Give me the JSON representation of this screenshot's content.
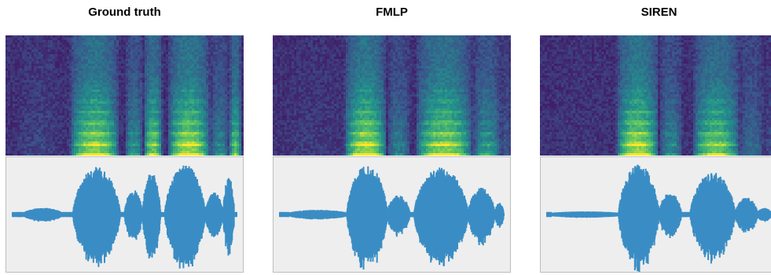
{
  "panels": [
    {
      "title": "Ground truth",
      "seed": 3,
      "segments": [
        [
          0.05,
          0.22,
          0.1
        ],
        [
          0.27,
          0.48,
          0.9
        ],
        [
          0.5,
          0.58,
          0.45
        ],
        [
          0.58,
          0.66,
          0.8
        ],
        [
          0.68,
          0.86,
          0.95
        ],
        [
          0.86,
          0.94,
          0.4
        ],
        [
          0.94,
          0.99,
          0.7
        ]
      ]
    },
    {
      "title": "FMLP",
      "seed": 7,
      "segments": [
        [
          0.04,
          0.3,
          0.06
        ],
        [
          0.3,
          0.48,
          0.95
        ],
        [
          0.48,
          0.58,
          0.35
        ],
        [
          0.6,
          0.84,
          0.9
        ],
        [
          0.84,
          0.96,
          0.5
        ],
        [
          0.96,
          1.0,
          0.2
        ]
      ]
    },
    {
      "title": "SIREN",
      "seed": 11,
      "segments": [
        [
          0.02,
          0.32,
          0.03
        ],
        [
          0.32,
          0.5,
          0.95
        ],
        [
          0.5,
          0.6,
          0.4
        ],
        [
          0.64,
          0.84,
          0.8
        ],
        [
          0.84,
          0.94,
          0.3
        ],
        [
          0.94,
          1.0,
          0.1
        ]
      ]
    }
  ],
  "colors": {
    "waveform": "#3a8dc4",
    "background": "#eeeeee",
    "border": "#bdbdbd"
  }
}
